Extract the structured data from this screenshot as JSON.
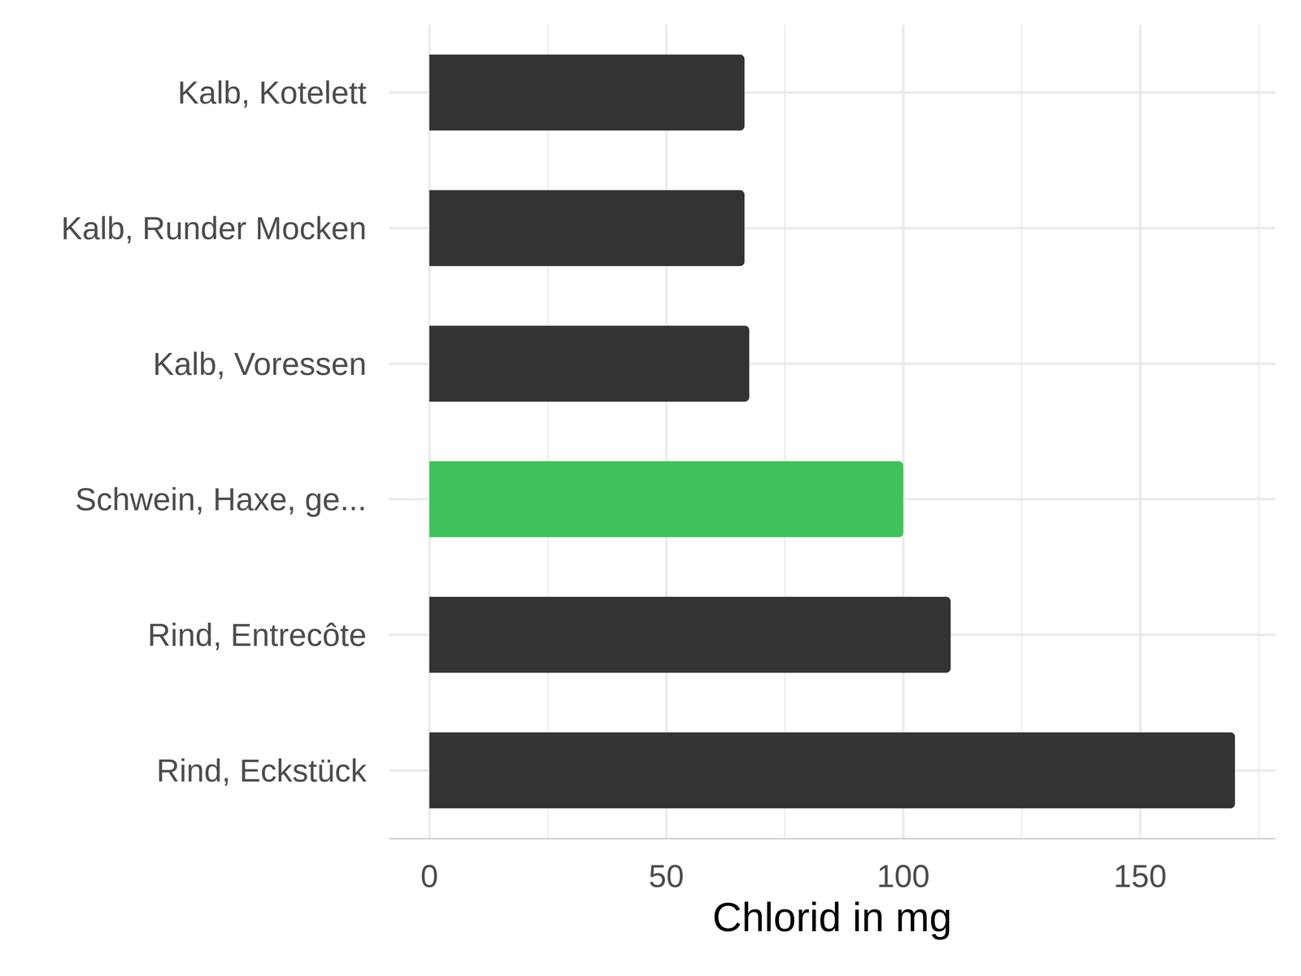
{
  "chart_data": {
    "type": "bar",
    "orientation": "horizontal",
    "categories": [
      "Kalb, Kotelett",
      "Kalb, Runder Mocken",
      "Kalb, Voressen",
      "Schwein, Haxe, ge...",
      "Rind, Entrecôte",
      "Rind, Eckstück"
    ],
    "values": [
      66.5,
      66.5,
      67.5,
      100,
      110,
      170
    ],
    "colors": [
      "#333333",
      "#333333",
      "#333333",
      "#3ec35a",
      "#333333",
      "#333333"
    ],
    "x_label": "Chlorid in mg",
    "xlim": [
      -8.5,
      178.5
    ],
    "xticks": [
      0,
      50,
      100,
      150
    ],
    "grid": true
  }
}
